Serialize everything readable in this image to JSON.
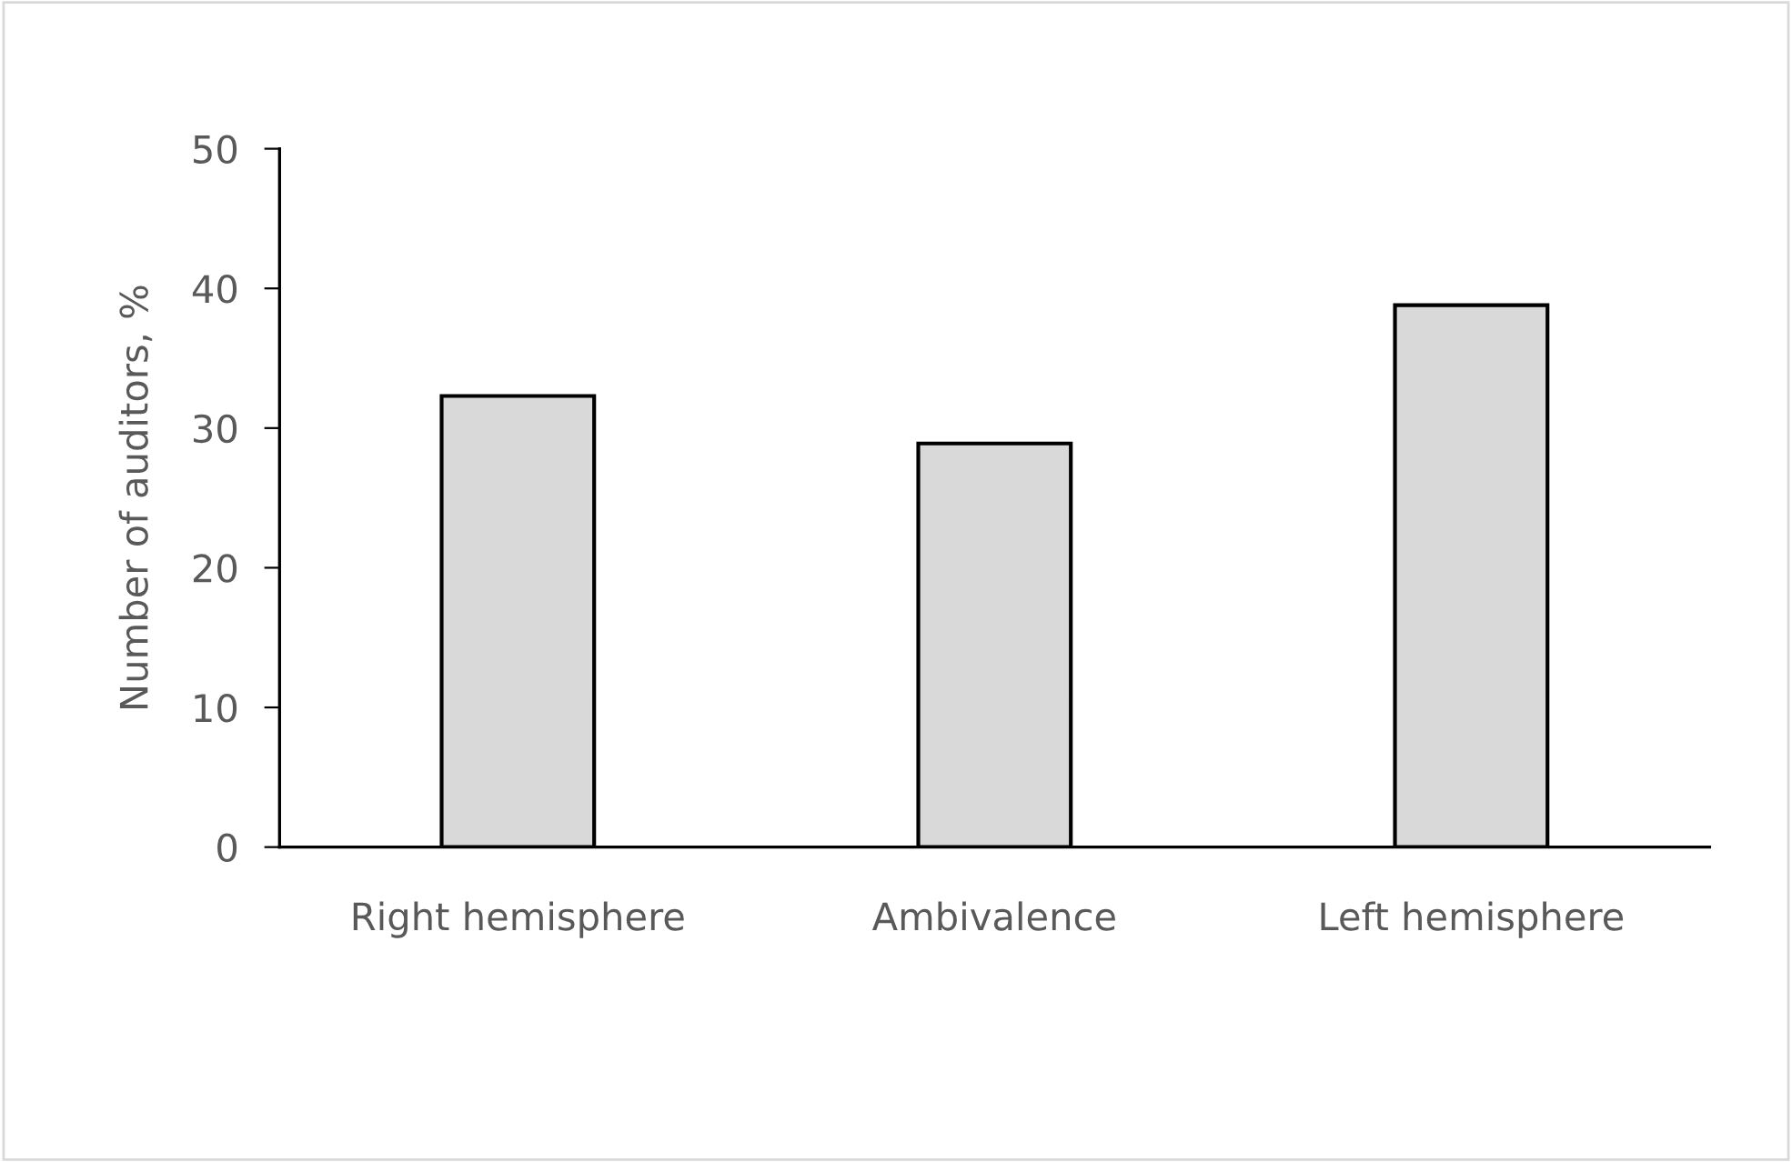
{
  "chart_data": {
    "type": "bar",
    "ylabel": "Number of auditors, %",
    "categories": [
      "Right hemisphere",
      "Ambivalence",
      "Left hemisphere"
    ],
    "values": [
      32.3,
      28.9,
      38.8
    ],
    "color": "#d9d9d9",
    "ylim": [
      0,
      50
    ],
    "yticks": [
      0,
      10,
      20,
      30,
      40,
      50
    ],
    "grid": false,
    "legend": false
  }
}
